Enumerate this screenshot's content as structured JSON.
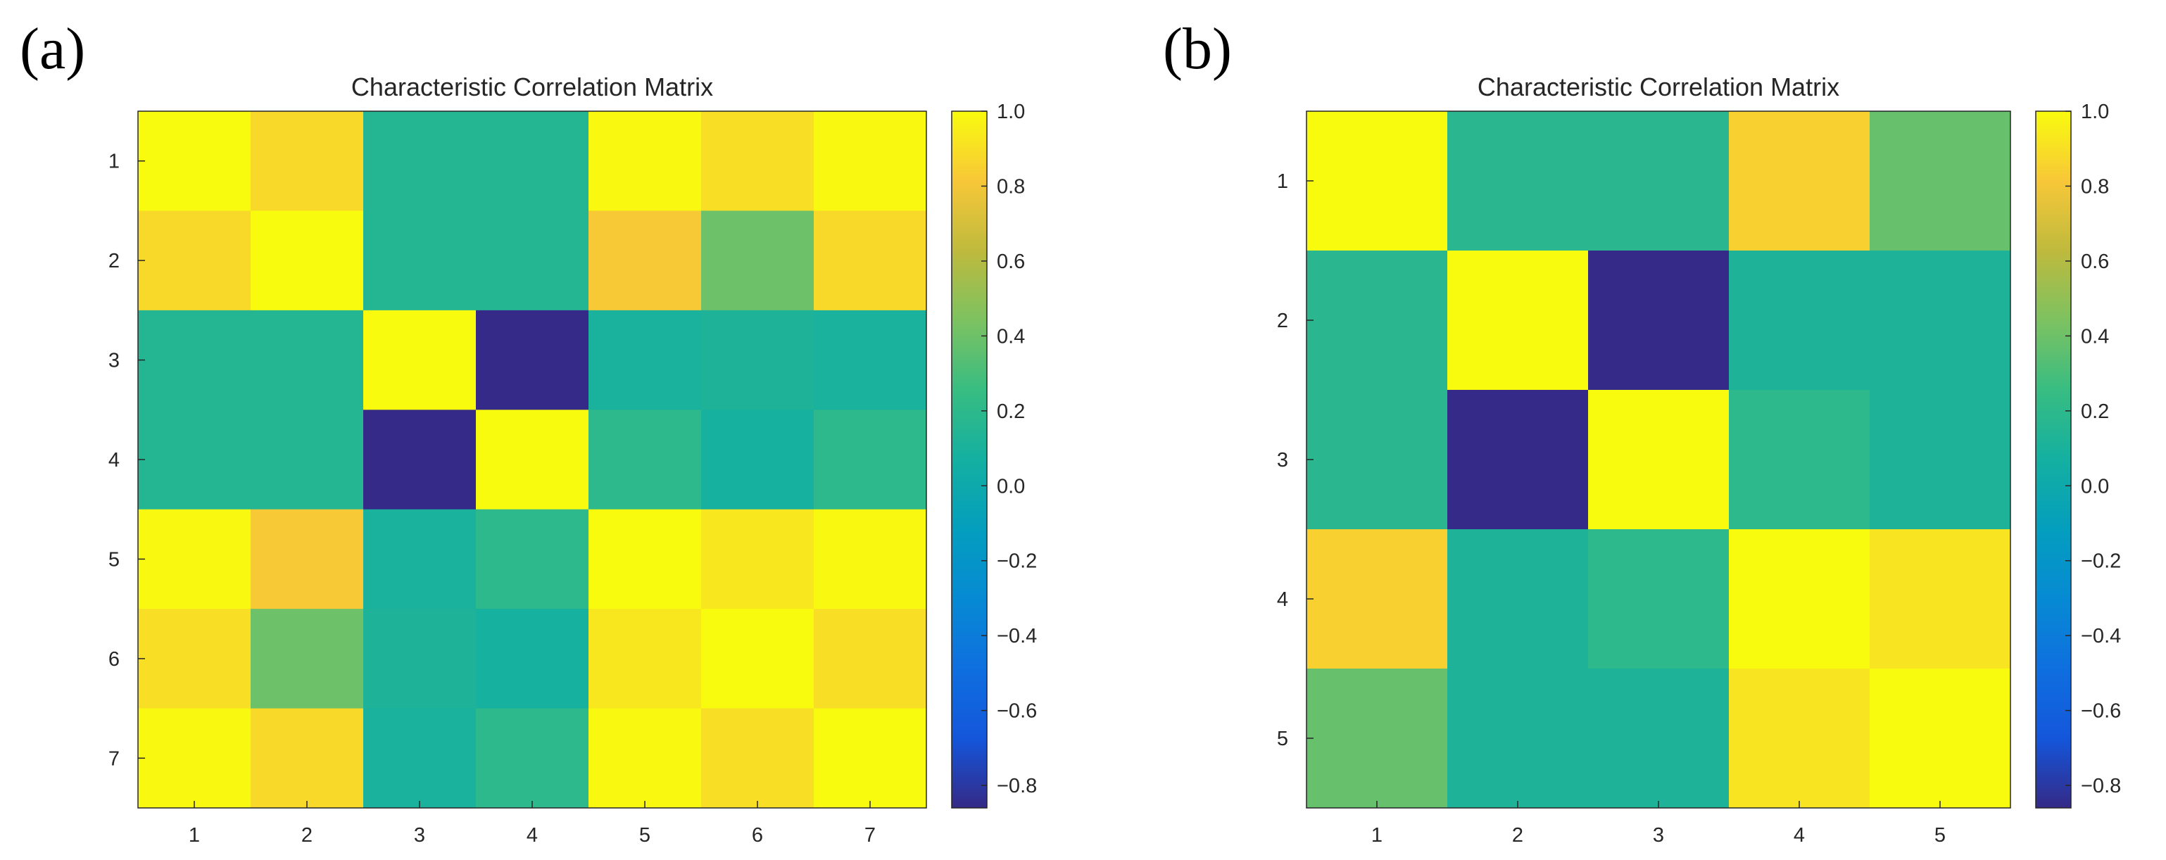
{
  "panels": [
    {
      "label": "(a)",
      "chart_data": {
        "type": "heatmap",
        "title": "Characteristic Correlation Matrix",
        "x_tick_labels": [
          "1",
          "2",
          "3",
          "4",
          "5",
          "6",
          "7"
        ],
        "y_tick_labels": [
          "1",
          "2",
          "3",
          "4",
          "5",
          "6",
          "7"
        ],
        "matrix": [
          [
            1.0,
            0.88,
            0.15,
            0.15,
            0.99,
            0.9,
            0.99
          ],
          [
            0.88,
            1.0,
            0.15,
            0.15,
            0.82,
            0.4,
            0.88
          ],
          [
            0.15,
            0.15,
            1.0,
            -0.86,
            0.1,
            0.12,
            0.1
          ],
          [
            0.15,
            0.15,
            -0.86,
            1.0,
            0.2,
            0.08,
            0.2
          ],
          [
            0.99,
            0.82,
            0.1,
            0.2,
            1.0,
            0.93,
            0.99
          ],
          [
            0.9,
            0.4,
            0.12,
            0.08,
            0.93,
            1.0,
            0.9
          ],
          [
            0.99,
            0.88,
            0.1,
            0.2,
            0.99,
            0.9,
            1.0
          ]
        ],
        "color_limits": [
          -0.86,
          1.0
        ],
        "colorbar_ticks": [
          "1.0",
          "0.8",
          "0.6",
          "0.4",
          "0.2",
          "0.0",
          "−0.2",
          "−0.4",
          "−0.6",
          "−0.8"
        ],
        "colorbar_tick_values": [
          1.0,
          0.8,
          0.6,
          0.4,
          0.2,
          0.0,
          -0.2,
          -0.4,
          -0.6,
          -0.8
        ],
        "colormap": "parula"
      }
    },
    {
      "label": "(b)",
      "chart_data": {
        "type": "heatmap",
        "title": "Characteristic Correlation Matrix",
        "x_tick_labels": [
          "1",
          "2",
          "3",
          "4",
          "5"
        ],
        "y_tick_labels": [
          "1",
          "2",
          "3",
          "4",
          "5"
        ],
        "matrix": [
          [
            1.0,
            0.18,
            0.18,
            0.85,
            0.38
          ],
          [
            0.18,
            1.0,
            -0.86,
            0.12,
            0.12
          ],
          [
            0.18,
            -0.86,
            1.0,
            0.2,
            0.12
          ],
          [
            0.85,
            0.12,
            0.2,
            1.0,
            0.92
          ],
          [
            0.38,
            0.12,
            0.12,
            0.92,
            1.0
          ]
        ],
        "color_limits": [
          -0.86,
          1.0
        ],
        "colorbar_ticks": [
          "1.0",
          "0.8",
          "0.6",
          "0.4",
          "0.2",
          "0.0",
          "−0.2",
          "−0.4",
          "−0.6",
          "−0.8"
        ],
        "colorbar_tick_values": [
          1.0,
          0.8,
          0.6,
          0.4,
          0.2,
          0.0,
          -0.2,
          -0.4,
          -0.6,
          -0.8
        ],
        "colormap": "parula"
      }
    }
  ]
}
